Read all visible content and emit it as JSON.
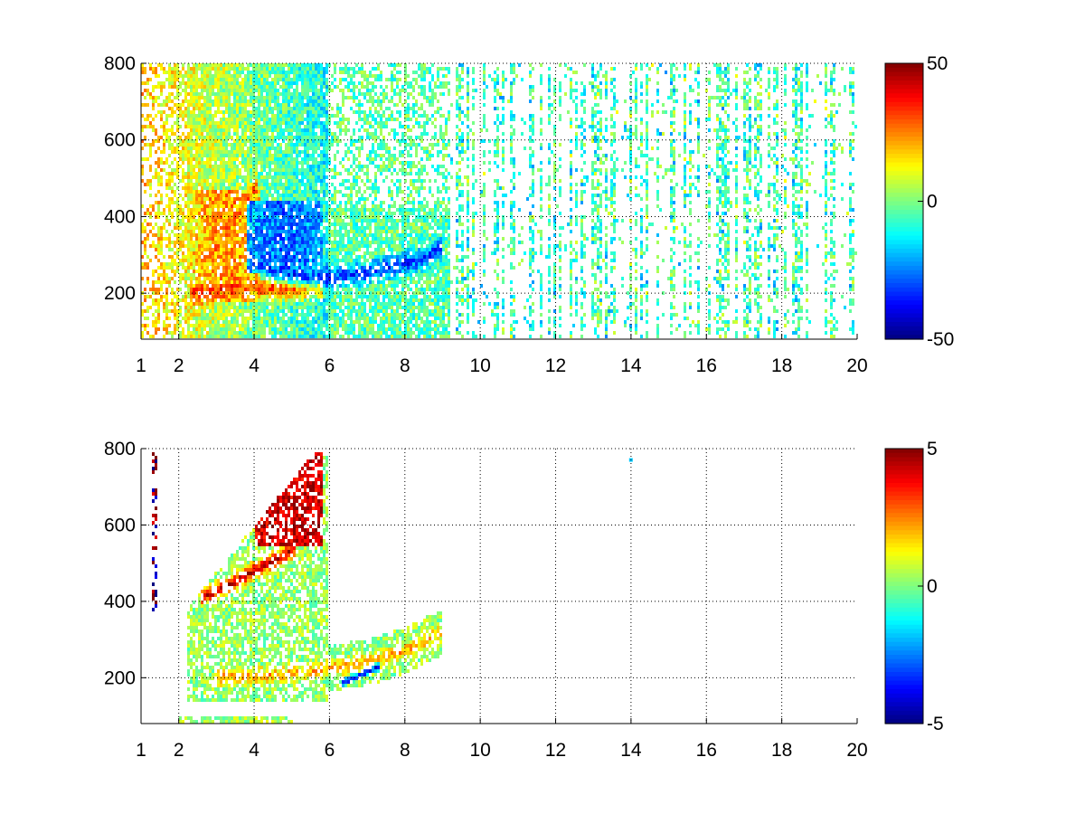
{
  "chart_data": [
    {
      "type": "heatmap",
      "x_ticks": [
        1,
        2,
        4,
        6,
        8,
        10,
        12,
        14,
        16,
        18,
        20
      ],
      "y_ticks": [
        200,
        400,
        600,
        800
      ],
      "xlim": [
        1,
        20
      ],
      "ylim": [
        80,
        800
      ],
      "grid": true,
      "colormap": "jet",
      "colorbar": {
        "range": [
          -50,
          50
        ],
        "ticks": [
          50,
          0,
          -50
        ]
      },
      "features": [
        {
          "name": "lower ridge",
          "value": 35,
          "points": [
            [
              2.3,
              195
            ],
            [
              3.0,
              210
            ],
            [
              4.0,
              215
            ],
            [
              5.0,
              212
            ],
            [
              5.8,
              220
            ]
          ]
        },
        {
          "name": "upper positive band",
          "value": 30,
          "points": [
            [
              2.8,
              300
            ],
            [
              3.3,
              360
            ],
            [
              3.8,
              440
            ],
            [
              4.1,
              480
            ]
          ]
        },
        {
          "name": "negative ridge",
          "value": -35,
          "points": [
            [
              3.6,
              290
            ],
            [
              4.5,
              260
            ],
            [
              5.5,
              240
            ],
            [
              6.5,
              245
            ],
            [
              7.5,
              265
            ],
            [
              8.5,
              290
            ],
            [
              9.0,
              320
            ]
          ]
        }
      ]
    },
    {
      "type": "heatmap",
      "x_ticks": [
        1,
        2,
        4,
        6,
        8,
        10,
        12,
        14,
        16,
        18,
        20
      ],
      "y_ticks": [
        200,
        400,
        600,
        800
      ],
      "xlim": [
        1,
        20
      ],
      "ylim": [
        80,
        800
      ],
      "grid": true,
      "colormap": "jet",
      "colorbar": {
        "range": [
          -5,
          5
        ],
        "ticks": [
          5,
          0,
          -5
        ]
      },
      "features": [
        {
          "name": "red band",
          "value": 4.5,
          "points": [
            [
              2.6,
              410
            ],
            [
              3.3,
              440
            ],
            [
              4.0,
              480
            ],
            [
              4.6,
              510
            ],
            [
              5.1,
              540
            ]
          ]
        },
        {
          "name": "orange ridge",
          "value": 2.2,
          "points": [
            [
              3.0,
              200
            ],
            [
              4.0,
              205
            ],
            [
              5.0,
              210
            ],
            [
              6.0,
              225
            ],
            [
              7.0,
              240
            ],
            [
              8.0,
              270
            ],
            [
              9.0,
              320
            ]
          ]
        },
        {
          "name": "blue streak",
          "value": -4.0,
          "points": [
            [
              6.3,
              185
            ],
            [
              6.9,
              210
            ],
            [
              7.3,
              230
            ]
          ]
        }
      ]
    }
  ]
}
